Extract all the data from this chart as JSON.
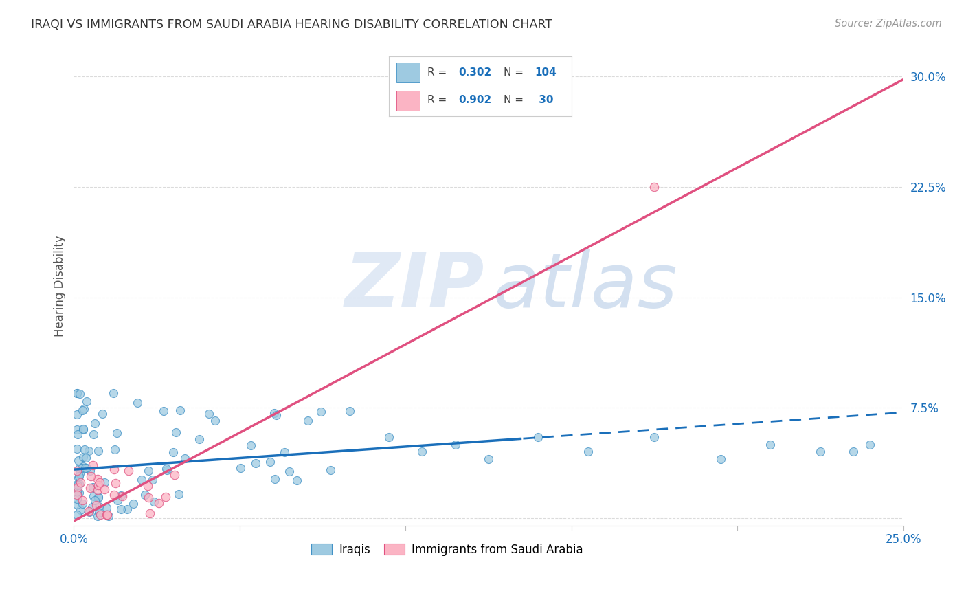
{
  "title": "IRAQI VS IMMIGRANTS FROM SAUDI ARABIA HEARING DISABILITY CORRELATION CHART",
  "source": "Source: ZipAtlas.com",
  "ylabel": "Hearing Disability",
  "xlim": [
    0.0,
    0.25
  ],
  "ylim": [
    -0.005,
    0.32
  ],
  "blue_color": "#9ecae1",
  "blue_edge": "#4292c6",
  "pink_color": "#fbb4c4",
  "pink_edge": "#e05080",
  "line_blue": "#1a6fba",
  "line_pink": "#e05080",
  "grid_color": "#cccccc",
  "legend_box_color": "#cccccc",
  "text_dark": "#333333",
  "text_blue": "#1a6fba"
}
